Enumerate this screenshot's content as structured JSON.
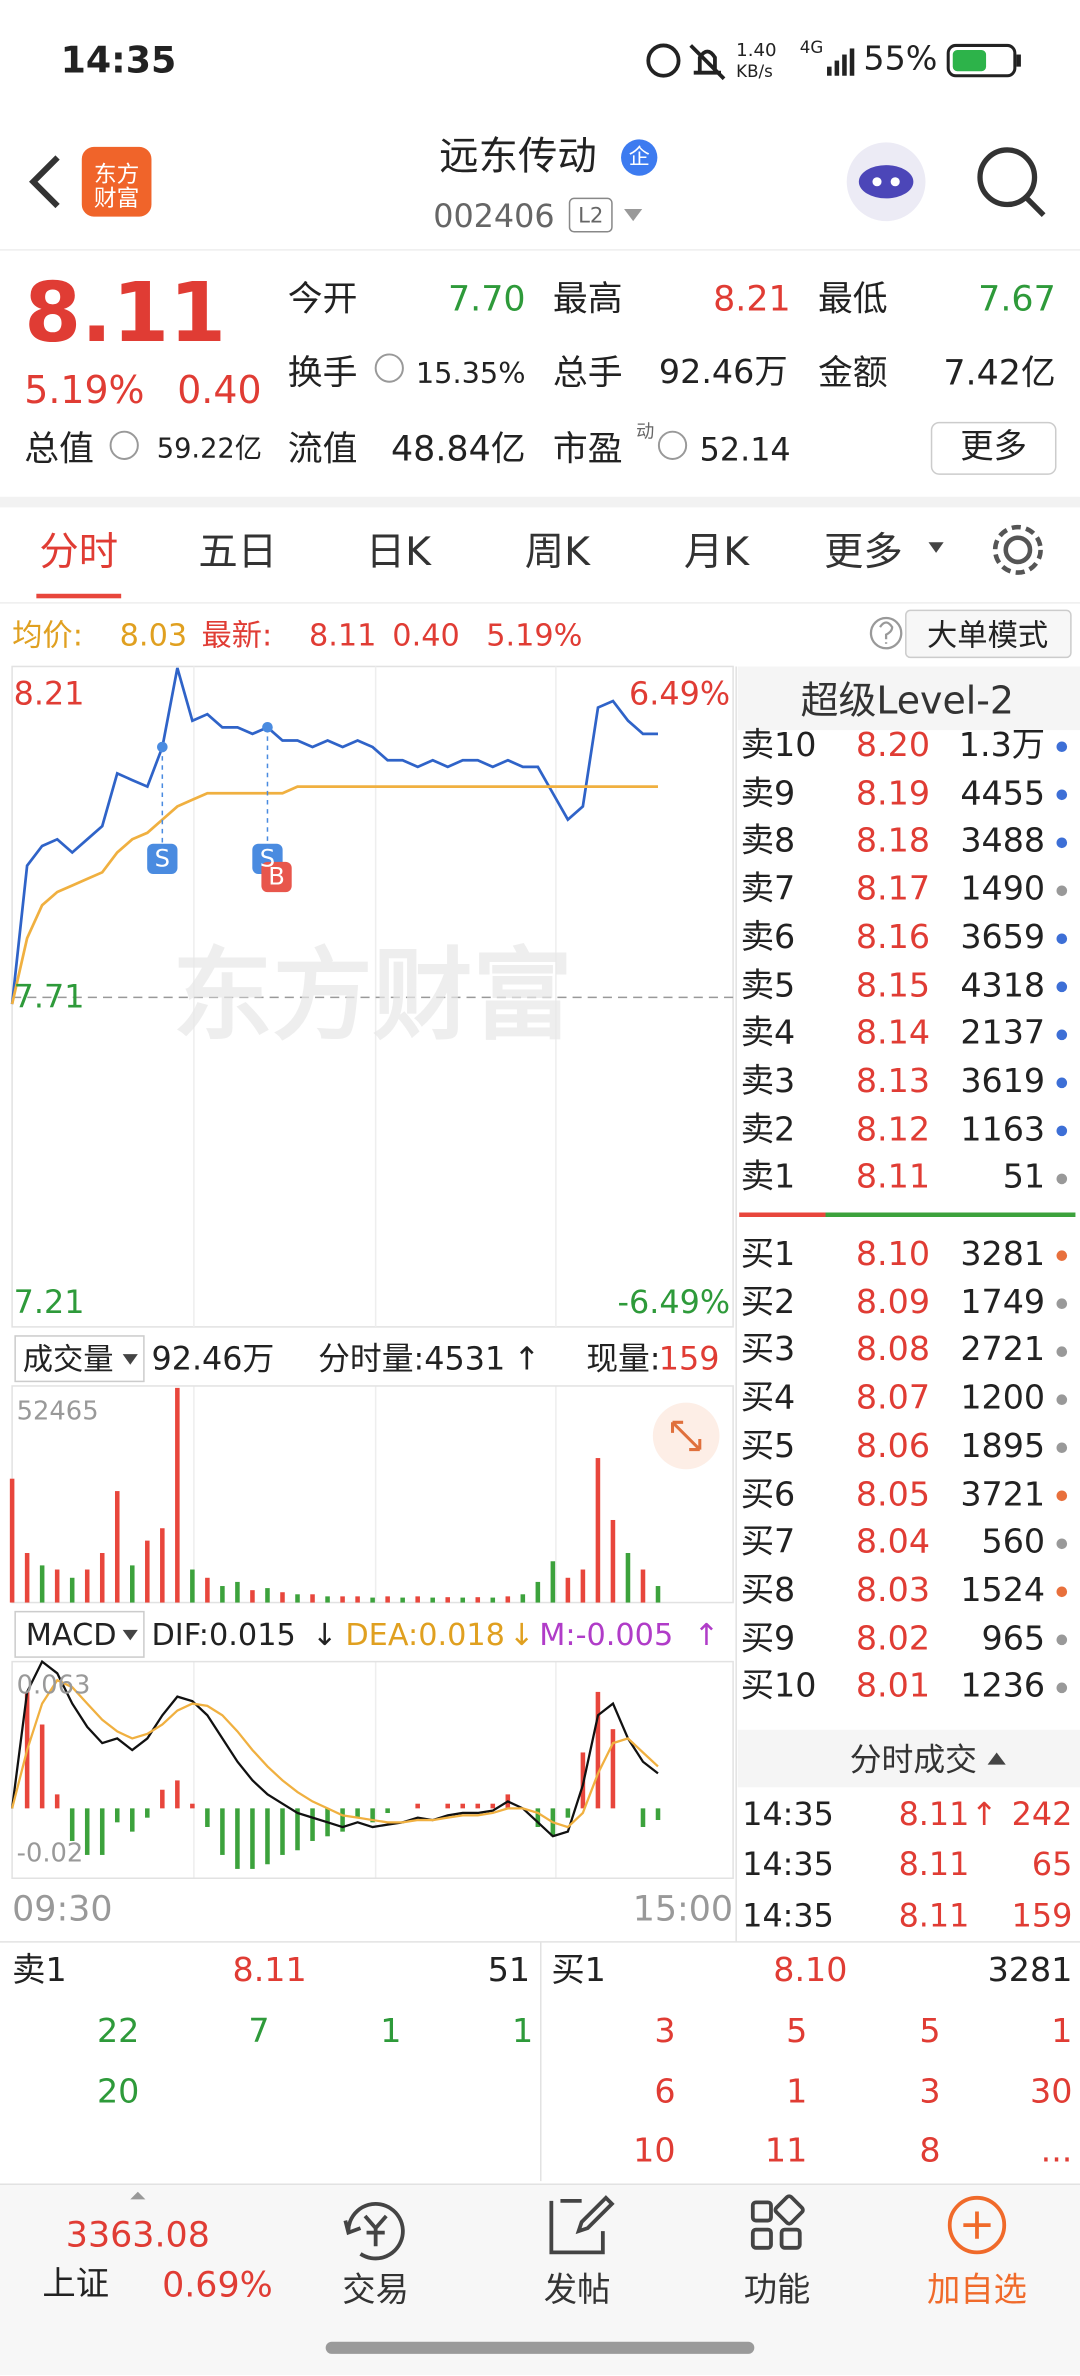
{
  "status": {
    "time": "14:35",
    "speed": "1.40",
    "speed_unit": "KB/s",
    "network": "4G",
    "battery": "55%"
  },
  "header": {
    "logo": "东方财富",
    "name": "远东传动",
    "badge": "企",
    "code": "002406",
    "level": "L2"
  },
  "quote": {
    "price": "8.11",
    "change_pct": "5.19%",
    "change": "0.40",
    "stats": [
      {
        "label": "今开",
        "value": "7.70"
      },
      {
        "label": "最高",
        "value": "8.21"
      },
      {
        "label": "最低",
        "value": "7.67"
      },
      {
        "label": "换手",
        "value": "15.35%"
      },
      {
        "label": "总手",
        "value": "92.46万"
      },
      {
        "label": "金额",
        "value": "7.42亿"
      },
      {
        "label": "总值",
        "value": "59.22亿"
      },
      {
        "label": "流值",
        "value": "48.84亿"
      },
      {
        "label": "市盈",
        "value": "52.14"
      }
    ],
    "pe_tag": "动",
    "more": "更多"
  },
  "tabs": [
    "分时",
    "五日",
    "日K",
    "周K",
    "月K",
    "更多"
  ],
  "summary": {
    "avg_label": "均价:",
    "avg": "8.03",
    "latest_label": "最新:",
    "latest": "8.11",
    "change": "0.40",
    "change_pct": "5.19%",
    "mode": "大单模式"
  },
  "intraday": {
    "type": "line",
    "watermark": "东方财富",
    "xlim": [
      0,
      240
    ],
    "xticks": [
      {
        "value": 0,
        "label": "09:30"
      },
      {
        "value": 240,
        "label": "15:00"
      }
    ],
    "ylim": [
      7.21,
      8.21
    ],
    "yticks": [
      8.21,
      7.71,
      7.21
    ],
    "y2lim": [
      -6.49,
      6.49
    ],
    "y2ticks": [
      {
        "value": 6.49,
        "label": "6.49%"
      },
      {
        "value": -6.49,
        "label": "-6.49%"
      }
    ],
    "x": [
      0,
      5,
      10,
      15,
      20,
      25,
      30,
      35,
      40,
      45,
      50,
      55,
      60,
      65,
      70,
      75,
      80,
      85,
      90,
      95,
      100,
      105,
      110,
      115,
      120,
      125,
      130,
      135,
      140,
      145,
      150,
      155,
      160,
      165,
      170,
      175,
      180,
      185,
      190,
      195,
      200,
      205,
      210,
      215
    ],
    "series": [
      {
        "color": "#2f63c8",
        "values": [
          7.7,
          7.91,
          7.94,
          7.95,
          7.93,
          7.95,
          7.97,
          8.05,
          8.04,
          8.03,
          8.09,
          8.21,
          8.13,
          8.14,
          8.12,
          8.12,
          8.11,
          8.12,
          8.1,
          8.1,
          8.09,
          8.1,
          8.09,
          8.1,
          8.09,
          8.07,
          8.07,
          8.06,
          8.07,
          8.06,
          8.07,
          8.07,
          8.06,
          8.07,
          8.06,
          8.06,
          8.02,
          7.98,
          8.0,
          8.15,
          8.16,
          8.13,
          8.11,
          8.11
        ]
      },
      {
        "color": "#f0b040",
        "values": [
          7.7,
          7.8,
          7.85,
          7.87,
          7.88,
          7.89,
          7.9,
          7.93,
          7.95,
          7.96,
          7.98,
          8.0,
          8.01,
          8.02,
          8.02,
          8.02,
          8.02,
          8.02,
          8.02,
          8.03,
          8.03,
          8.03,
          8.03,
          8.03,
          8.03,
          8.03,
          8.03,
          8.03,
          8.03,
          8.03,
          8.03,
          8.03,
          8.03,
          8.03,
          8.03,
          8.03,
          8.03,
          8.03,
          8.03,
          8.03,
          8.03,
          8.03,
          8.03,
          8.03
        ]
      }
    ],
    "markers": [
      {
        "x": 50,
        "label": "S",
        "color": "#4a8be0"
      },
      {
        "x": 85,
        "label": "S",
        "color": "#4a8be0"
      },
      {
        "x": 85,
        "label": "B",
        "color": "#e8564c"
      }
    ]
  },
  "volume": {
    "label": "成交量",
    "total": "92.46万",
    "minute": "分时量:4531",
    "minute_arrow": "↑",
    "current_label": "现量:",
    "current": "159",
    "ylim": [
      0,
      52465
    ],
    "yticks": [
      52465
    ],
    "x": [
      0,
      5,
      10,
      15,
      20,
      25,
      30,
      35,
      40,
      45,
      50,
      55,
      60,
      65,
      70,
      75,
      80,
      85,
      90,
      95,
      100,
      105,
      110,
      115,
      120,
      125,
      130,
      135,
      140,
      145,
      150,
      155,
      160,
      165,
      170,
      175,
      180,
      185,
      190,
      195,
      200,
      205,
      210,
      215
    ],
    "values": [
      30000,
      12000,
      9000,
      8000,
      6000,
      8000,
      12000,
      27000,
      9000,
      15000,
      18000,
      52000,
      8000,
      6000,
      4000,
      5000,
      3000,
      3500,
      2500,
      2000,
      2000,
      1500,
      1500,
      1500,
      1200,
      1500,
      1200,
      1500,
      1200,
      1300,
      1200,
      1300,
      1200,
      1500,
      2000,
      5000,
      10000,
      6000,
      8000,
      35000,
      20000,
      12000,
      8000,
      4000
    ],
    "colors": [
      "#e8463c",
      "#e8463c",
      "#3ca23c",
      "#e8463c",
      "#3ca23c",
      "#e8463c",
      "#e8463c",
      "#e8463c",
      "#3ca23c",
      "#e8463c",
      "#e8463c",
      "#e8463c",
      "#3ca23c",
      "#e8463c",
      "#3ca23c",
      "#3ca23c",
      "#e8463c",
      "#3ca23c",
      "#e8463c",
      "#3ca23c",
      "#e8463c",
      "#3ca23c",
      "#e8463c",
      "#e8463c",
      "#3ca23c",
      "#e8463c",
      "#3ca23c",
      "#e8463c",
      "#3ca23c",
      "#e8463c",
      "#3ca23c",
      "#e8463c",
      "#3ca23c",
      "#e8463c",
      "#3ca23c",
      "#3ca23c",
      "#3ca23c",
      "#e8463c",
      "#e8463c",
      "#e8463c",
      "#e8463c",
      "#3ca23c",
      "#e8463c",
      "#3ca23c"
    ]
  },
  "macd": {
    "label": "MACD",
    "dif": "DIF:0.015",
    "dif_arrow": "↓",
    "dea": "DEA:0.018",
    "dea_arrow": "↓",
    "m": "M:-0.005",
    "m_arrow": "↑",
    "ylim": [
      -0.03,
      0.063
    ],
    "yticks": [
      0.063,
      {
        "value": -0.02,
        "label": "-0.02"
      }
    ],
    "bar_colors": {
      "positive": "#e8463c",
      "negative": "#3ca23c"
    },
    "x": [
      0,
      5,
      10,
      15,
      20,
      25,
      30,
      35,
      40,
      45,
      50,
      55,
      60,
      65,
      70,
      75,
      80,
      85,
      90,
      95,
      100,
      105,
      110,
      115,
      120,
      125,
      130,
      135,
      140,
      145,
      150,
      155,
      160,
      165,
      170,
      175,
      180,
      185,
      190,
      195,
      200,
      205,
      210,
      215
    ],
    "series": [
      {
        "color": "#111111",
        "values": [
          0.0,
          0.05,
          0.063,
          0.058,
          0.045,
          0.035,
          0.028,
          0.03,
          0.025,
          0.03,
          0.04,
          0.048,
          0.046,
          0.04,
          0.03,
          0.02,
          0.012,
          0.006,
          0.002,
          -0.002,
          -0.004,
          -0.006,
          -0.008,
          -0.006,
          -0.008,
          -0.007,
          -0.006,
          -0.004,
          -0.005,
          -0.003,
          -0.002,
          -0.002,
          -0.001,
          0.003,
          0.0,
          -0.006,
          -0.012,
          -0.01,
          0.01,
          0.04,
          0.045,
          0.03,
          0.02,
          0.015
        ]
      },
      {
        "color": "#f0b040",
        "values": [
          0.0,
          0.025,
          0.045,
          0.055,
          0.052,
          0.045,
          0.038,
          0.033,
          0.03,
          0.032,
          0.036,
          0.042,
          0.045,
          0.044,
          0.04,
          0.033,
          0.025,
          0.018,
          0.012,
          0.007,
          0.003,
          0.0,
          -0.003,
          -0.004,
          -0.005,
          -0.006,
          -0.006,
          -0.005,
          -0.005,
          -0.004,
          -0.003,
          -0.003,
          -0.002,
          0.0,
          0.0,
          -0.002,
          -0.006,
          -0.008,
          -0.002,
          0.015,
          0.028,
          0.03,
          0.024,
          0.018
        ]
      }
    ],
    "histogram": [
      0,
      0.05,
      0.036,
      0.006,
      -0.014,
      -0.02,
      -0.02,
      -0.006,
      -0.01,
      -0.004,
      0.008,
      0.012,
      0.002,
      -0.008,
      -0.02,
      -0.026,
      -0.026,
      -0.024,
      -0.02,
      -0.018,
      -0.014,
      -0.012,
      -0.01,
      -0.004,
      -0.006,
      -0.002,
      0,
      0.002,
      0,
      0.002,
      0.002,
      0.002,
      0.002,
      0.006,
      0,
      -0.008,
      -0.012,
      -0.004,
      0.024,
      0.05,
      0.034,
      0,
      -0.008,
      -0.005
    ]
  },
  "book": {
    "title": "超级Level-2",
    "asks": [
      {
        "label": "卖10",
        "price": "8.20",
        "volume": "1.3万",
        "dot": "#3d6fd6"
      },
      {
        "label": "卖9",
        "price": "8.19",
        "volume": "4455",
        "dot": "#3d6fd6"
      },
      {
        "label": "卖8",
        "price": "8.18",
        "volume": "3488",
        "dot": "#3d6fd6"
      },
      {
        "label": "卖7",
        "price": "8.17",
        "volume": "1490",
        "dot": "#999999"
      },
      {
        "label": "卖6",
        "price": "8.16",
        "volume": "3659",
        "dot": "#3d6fd6"
      },
      {
        "label": "卖5",
        "price": "8.15",
        "volume": "4318",
        "dot": "#3d6fd6"
      },
      {
        "label": "卖4",
        "price": "8.14",
        "volume": "2137",
        "dot": "#3d6fd6"
      },
      {
        "label": "卖3",
        "price": "8.13",
        "volume": "3619",
        "dot": "#3d6fd6"
      },
      {
        "label": "卖2",
        "price": "8.12",
        "volume": "1163",
        "dot": "#3d6fd6"
      },
      {
        "label": "卖1",
        "price": "8.11",
        "volume": "51",
        "dot": "#999999"
      }
    ],
    "bids": [
      {
        "label": "买1",
        "price": "8.10",
        "volume": "3281",
        "dot": "#e8703c"
      },
      {
        "label": "买2",
        "price": "8.09",
        "volume": "1749",
        "dot": "#999999"
      },
      {
        "label": "买3",
        "price": "8.08",
        "volume": "2721",
        "dot": "#999999"
      },
      {
        "label": "买4",
        "price": "8.07",
        "volume": "1200",
        "dot": "#999999"
      },
      {
        "label": "买5",
        "price": "8.06",
        "volume": "1895",
        "dot": "#999999"
      },
      {
        "label": "买6",
        "price": "8.05",
        "volume": "3721",
        "dot": "#e8703c"
      },
      {
        "label": "买7",
        "price": "8.04",
        "volume": "560",
        "dot": "#999999"
      },
      {
        "label": "买8",
        "price": "8.03",
        "volume": "1524",
        "dot": "#e8703c"
      },
      {
        "label": "买9",
        "price": "8.02",
        "volume": "965",
        "dot": "#999999"
      },
      {
        "label": "买10",
        "price": "8.01",
        "volume": "1236",
        "dot": "#999999"
      }
    ]
  },
  "trades": {
    "title": "分时成交",
    "rows": [
      {
        "time": "14:35",
        "price": "8.11",
        "arrow": "↑",
        "volume": "242"
      },
      {
        "time": "14:35",
        "price": "8.11",
        "arrow": "",
        "volume": "65"
      },
      {
        "time": "14:35",
        "price": "8.11",
        "arrow": "",
        "volume": "159"
      }
    ]
  },
  "depth": {
    "ask": {
      "label": "卖1",
      "price": "8.11",
      "volume": "51",
      "orders": [
        [
          "22",
          "7",
          "1",
          "1"
        ],
        [
          "20"
        ]
      ]
    },
    "bid": {
      "label": "买1",
      "price": "8.10",
      "volume": "3281",
      "orders": [
        [
          "3",
          "5",
          "5",
          "1"
        ],
        [
          "6",
          "1",
          "3",
          "30"
        ],
        [
          "10",
          "11",
          "8",
          "..."
        ]
      ]
    }
  },
  "nav": {
    "index_value": "3363.08",
    "index_name": "上证",
    "index_pct": "0.69%",
    "items": [
      "交易",
      "发帖",
      "功能",
      "加自选"
    ]
  }
}
